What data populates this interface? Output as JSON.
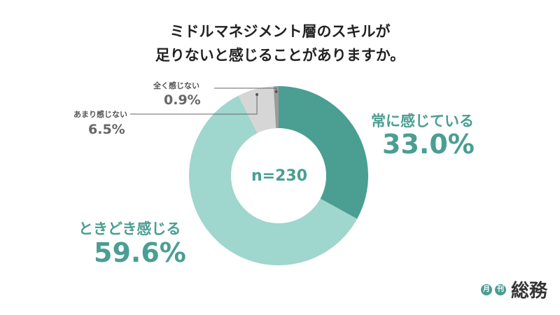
{
  "chart_data": {
    "type": "pie",
    "variant": "donut",
    "title": [
      "ミドルマネジメント層のスキルが",
      "足りないと感じることがありますか。"
    ],
    "center_label": "n=230",
    "slices": [
      {
        "label": "常に感じている",
        "value": 33.0,
        "value_text": "33.0%",
        "color": "#4a9e92"
      },
      {
        "label": "ときどき感じる",
        "value": 59.6,
        "value_text": "59.6%",
        "color": "#9fd6cd"
      },
      {
        "label": "あまり感じない",
        "value": 6.5,
        "value_text": "6.5%",
        "color": "#d6d6d6"
      },
      {
        "label": "全く感じない",
        "value": 0.9,
        "value_text": "0.9%",
        "color": "#9b9b9b"
      }
    ]
  },
  "brand": {
    "badge_1": "月",
    "badge_2": "刊",
    "name": "総務",
    "color": "#4a9e92"
  }
}
